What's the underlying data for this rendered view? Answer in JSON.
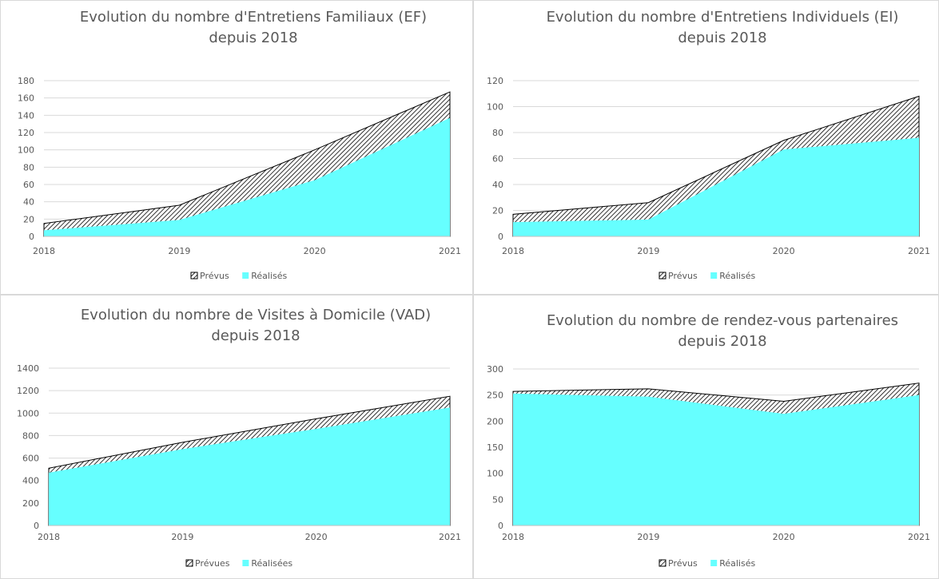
{
  "colors": {
    "realised": "#66ffff",
    "planned_hatch": "#000000",
    "grid": "#d9d9d9",
    "text": "#595959"
  },
  "chart_data": [
    {
      "type": "area",
      "title": [
        "Evolution du nombre d'Entretiens Familiaux (EF)",
        "depuis 2018"
      ],
      "categories": [
        "2018",
        "2019",
        "2020",
        "2021"
      ],
      "series": [
        {
          "name": "Prévus",
          "values": [
            15,
            36,
            100,
            167
          ],
          "style": "hatched"
        },
        {
          "name": "Réalisés",
          "values": [
            7,
            19,
            65,
            137
          ],
          "style": "solid"
        }
      ],
      "ylim": [
        0,
        180
      ],
      "yticks": [
        "0",
        "20",
        "40",
        "60",
        "80",
        "100",
        "120",
        "140",
        "160",
        "180"
      ],
      "grid": true,
      "legend": "bottom"
    },
    {
      "type": "area",
      "title": [
        "Evolution du nombre d'Entretiens Individuels (EI)",
        "depuis 2018"
      ],
      "categories": [
        "2018",
        "2019",
        "2020",
        "2021"
      ],
      "series": [
        {
          "name": "Prévus",
          "values": [
            17,
            26,
            74,
            108
          ],
          "style": "hatched"
        },
        {
          "name": "Réalisés",
          "values": [
            11,
            13,
            67,
            76
          ],
          "style": "solid"
        }
      ],
      "ylim": [
        0,
        120
      ],
      "yticks": [
        "0",
        "20",
        "40",
        "60",
        "80",
        "100",
        "120"
      ],
      "grid": true,
      "legend": "bottom"
    },
    {
      "type": "area",
      "title": [
        "Evolution du nombre de Visites à Domicile (VAD)",
        "depuis 2018"
      ],
      "categories": [
        "2018",
        "2019",
        "2020",
        "2021"
      ],
      "series": [
        {
          "name": "Prévues",
          "values": [
            510,
            740,
            950,
            1150
          ],
          "style": "hatched"
        },
        {
          "name": "Réalisées",
          "values": [
            470,
            680,
            860,
            1050
          ],
          "style": "solid"
        }
      ],
      "ylim": [
        0,
        1400
      ],
      "yticks": [
        "0",
        "200",
        "400",
        "600",
        "800",
        "1000",
        "1200",
        "1400"
      ],
      "grid": true,
      "legend": "bottom"
    },
    {
      "type": "area",
      "title": [
        "Evolution du nombre de rendez-vous partenaires",
        "depuis 2018"
      ],
      "categories": [
        "2018",
        "2019",
        "2020",
        "2021"
      ],
      "series": [
        {
          "name": "Prévus",
          "values": [
            257,
            262,
            238,
            273
          ],
          "style": "hatched"
        },
        {
          "name": "Réalisés",
          "values": [
            253,
            247,
            214,
            250
          ],
          "style": "solid"
        }
      ],
      "ylim": [
        0,
        300
      ],
      "yticks": [
        "0",
        "50",
        "100",
        "150",
        "200",
        "250",
        "300"
      ],
      "grid": true,
      "legend": "bottom"
    }
  ]
}
